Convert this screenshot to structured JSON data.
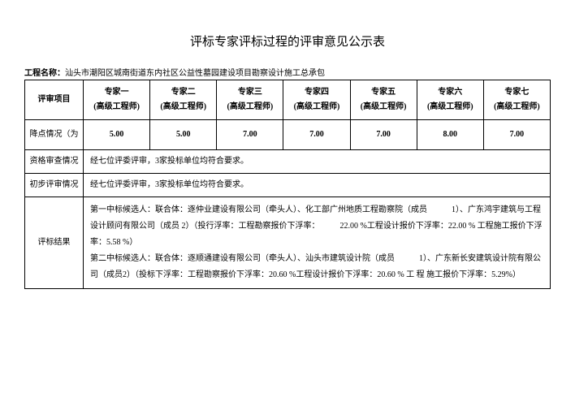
{
  "title": "评标专家评标过程的评审意见公示表",
  "project_label": "工程名称：",
  "project_name": "汕头市潮阳区城南街道东内社区公益性墓园建设项目勘察设计施工总承包",
  "headers": {
    "review_item": "评审项目",
    "experts": [
      {
        "name": "专家一",
        "title": "(高级工程师)"
      },
      {
        "name": "专家二",
        "title": "(高级工程师)"
      },
      {
        "name": "专家三",
        "title": "(高级工程师)"
      },
      {
        "name": "专家四",
        "title": "(高级工程师)"
      },
      {
        "name": "专家五",
        "title": "(高级工程师)"
      },
      {
        "name": "专家六",
        "title": "(高级工程师)"
      },
      {
        "name": "专家七",
        "title": "(高级工程师)"
      }
    ]
  },
  "rows": {
    "score": {
      "label": "降点情况（为",
      "values": [
        "5.00",
        "5.00",
        "7.00",
        "7.00",
        "7.00",
        "8.00",
        "7.00"
      ]
    },
    "qualification": {
      "label": "资格审查情况",
      "text": "经七位评委评审，3家投标单位均符合要求。"
    },
    "preliminary": {
      "label": "初步评审情况",
      "text": "经七位评委评审，3家投标单位均符合要求。"
    },
    "result": {
      "label": "评标结果",
      "text": "第一中标候选人：联合体：逐仲业建设有限公司（牵头人）、化工部广州地质工程勘察院（成员　　　1）、广东鸿宇建筑与工程设计顾问有限公司（成员 2）（投行浮率：工程勘察报价下浮率：　　　22.00 %工程设计报价下浮率：22.00 % 工程施工报价下浮率：5.58 %）\n第二中标候选人：联合体：逐顺通建设有限公司（牵头人）、汕头市建筑设计院（成员　　　1）、广东新长安建筑设计院有限公司（成员2）（投标下浮率：工程勘察报价下浮率：20.60 %工程设计报价下浮率：20.60 % 工 程 施工报价下浮率：5.29%）"
    }
  }
}
